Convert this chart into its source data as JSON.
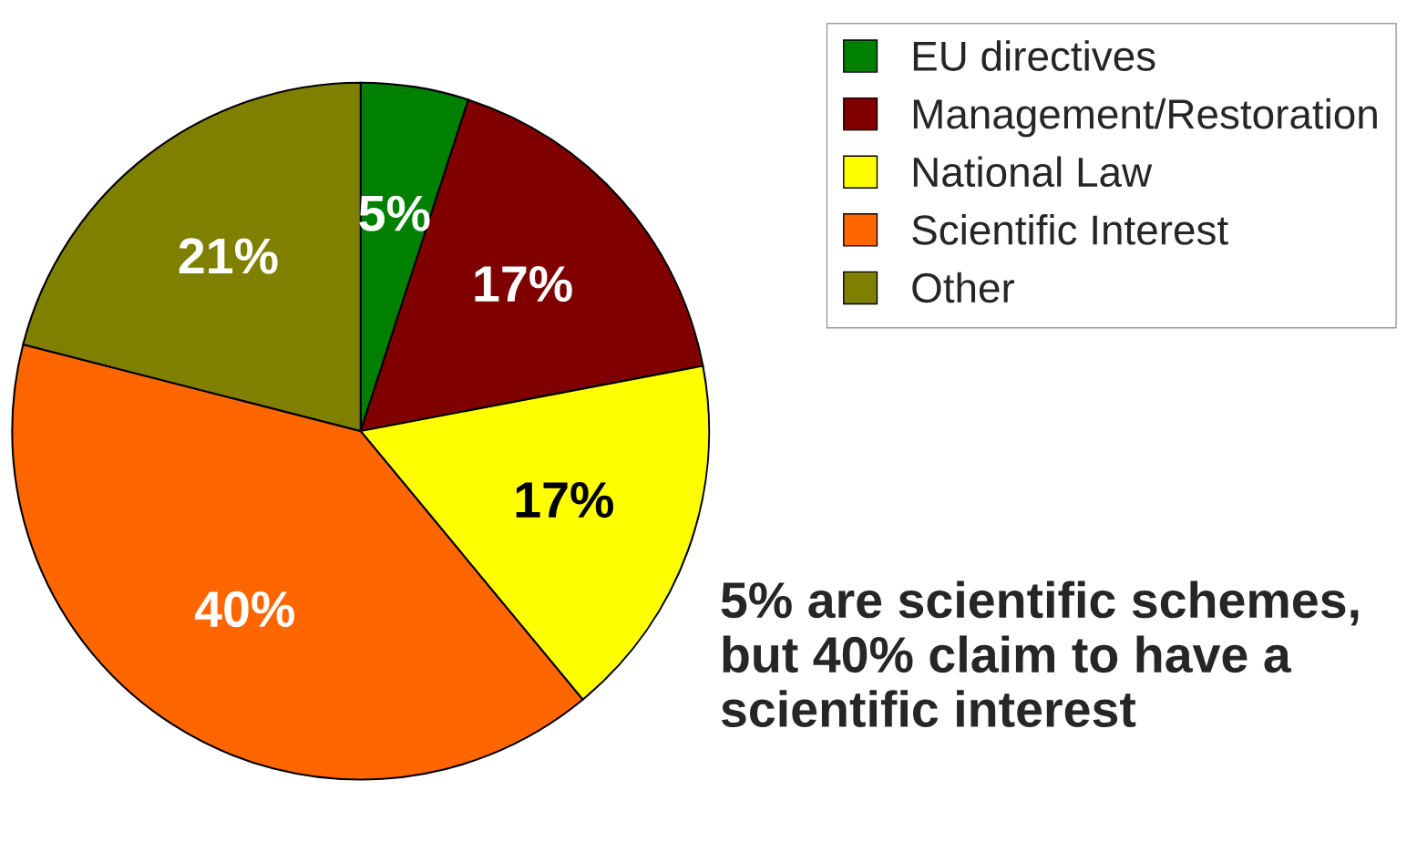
{
  "chart_data": {
    "type": "pie",
    "categories": [
      "EU directives",
      "Management/Restoration",
      "National Law",
      "Scientific Interest",
      "Other"
    ],
    "values": [
      5,
      17,
      17,
      40,
      21
    ],
    "colors": [
      "#008000",
      "#800000",
      "#ffff00",
      "#ff6600",
      "#808000"
    ],
    "value_labels": [
      "5%",
      "17%",
      "17%",
      "40%",
      "21%"
    ],
    "legend": "top right",
    "annotations": [
      "5% are scientific schemes, but 40% claim to have a scientific interest"
    ]
  }
}
